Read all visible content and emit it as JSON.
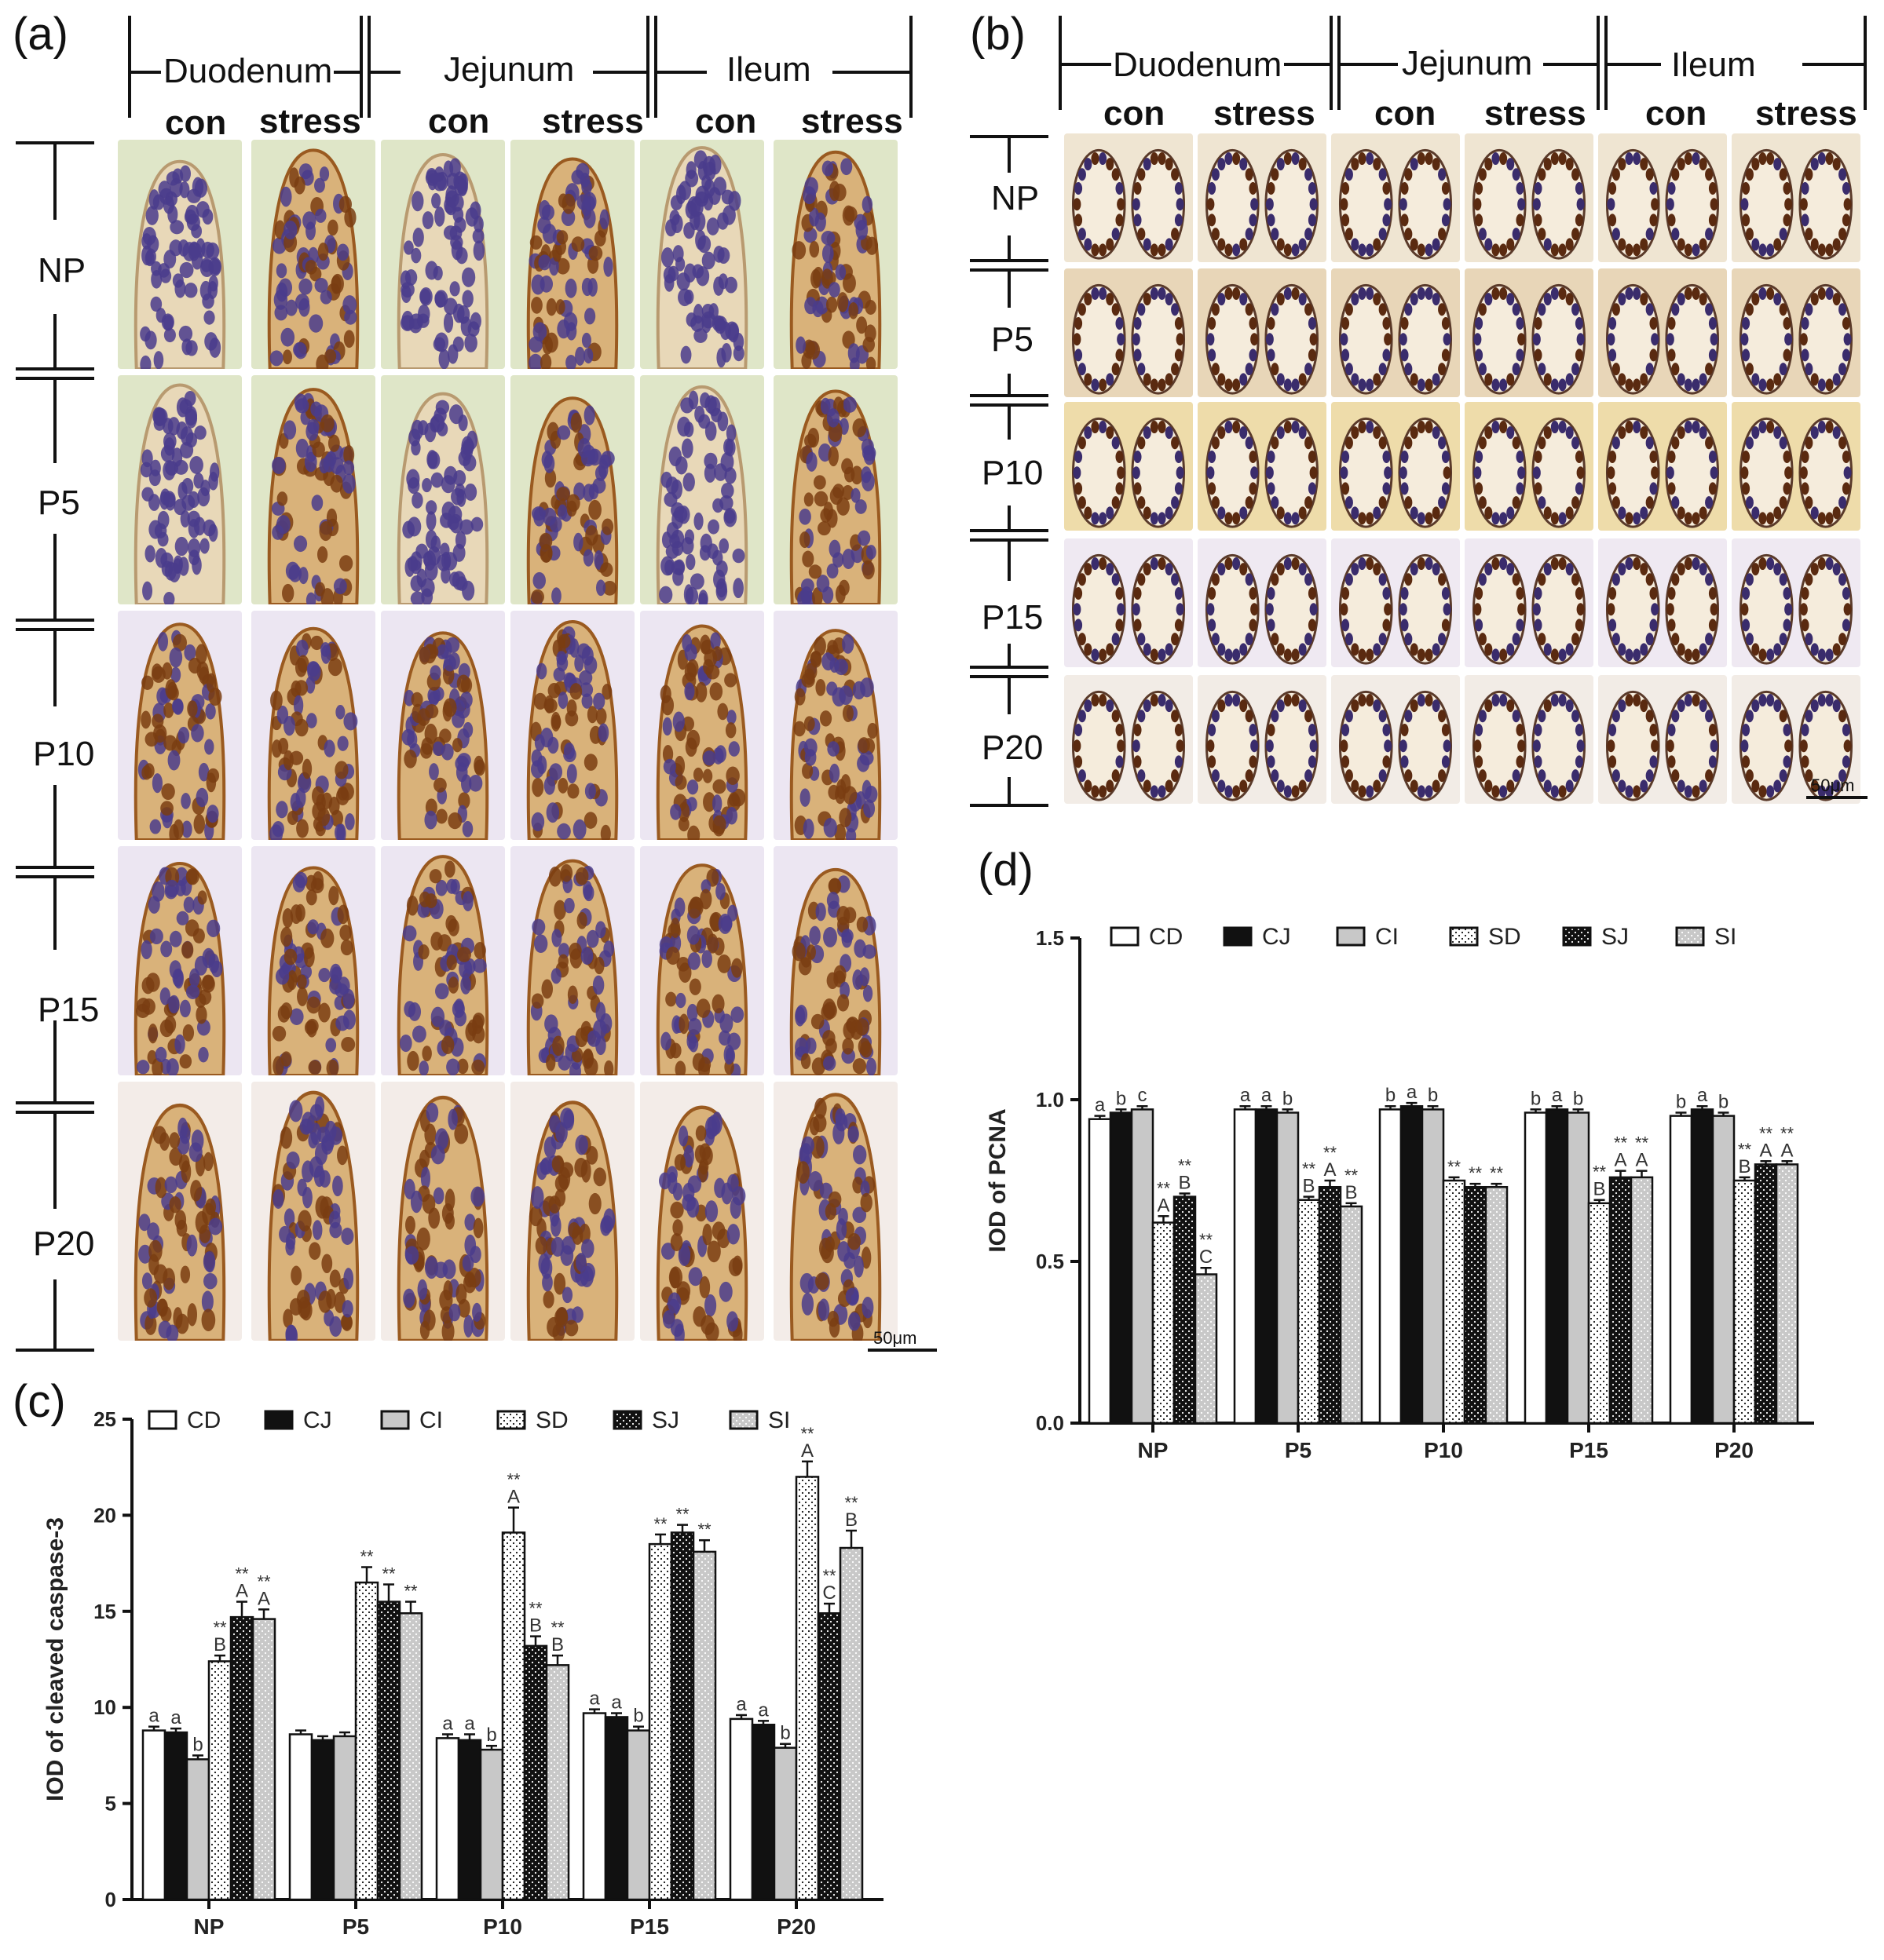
{
  "panel_a": {
    "label": "(a)",
    "segments": [
      "Duodenum",
      "Jejunum",
      "Ileum"
    ],
    "conditions": [
      "con",
      "stress",
      "con",
      "stress",
      "con",
      "stress"
    ],
    "rows": [
      "NP",
      "P5",
      "P10",
      "P15",
      "P20"
    ],
    "scale_label": "50μm"
  },
  "panel_b": {
    "label": "(b)",
    "segments": [
      "Duodenum",
      "Jejunum",
      "Ileum"
    ],
    "conditions": [
      "con",
      "stress",
      "con",
      "stress",
      "con",
      "stress"
    ],
    "rows": [
      "NP",
      "P5",
      "P10",
      "P15",
      "P20"
    ],
    "scale_label": "50μm"
  },
  "panel_c_label": "(c)",
  "panel_d_label": "(d)",
  "colors": {
    "black": "#111111",
    "grey": "#c8c8c8",
    "white": "#ffffff",
    "text": "#222222",
    "tissue_stain_brown": "#8a4a1a",
    "tissue_nuclei_purple": "#5a4a9a",
    "background_green": "#c8d6b0"
  },
  "chart_data": [
    {
      "id": "c",
      "type": "bar",
      "title": "",
      "xlabel": "",
      "ylabel": "IOD of cleaved caspase-3",
      "ylim": [
        0,
        25
      ],
      "yticks": [
        0,
        5,
        10,
        15,
        20,
        25
      ],
      "categories": [
        "NP",
        "P5",
        "P10",
        "P15",
        "P20"
      ],
      "legend_position": "top",
      "series": [
        {
          "name": "CD",
          "fill": "white",
          "values": [
            8.8,
            8.6,
            8.4,
            9.7,
            9.4
          ],
          "errors": [
            0.2,
            0.2,
            0.2,
            0.2,
            0.2
          ],
          "labels": [
            "a",
            "",
            "a",
            "a",
            "a"
          ],
          "stars": [
            "",
            "",
            "",
            "",
            ""
          ]
        },
        {
          "name": "CJ",
          "fill": "black",
          "values": [
            8.7,
            8.3,
            8.3,
            9.5,
            9.1
          ],
          "errors": [
            0.2,
            0.2,
            0.3,
            0.2,
            0.2
          ],
          "labels": [
            "a",
            "",
            "a",
            "a",
            "a"
          ],
          "stars": [
            "",
            "",
            "",
            "",
            ""
          ]
        },
        {
          "name": "CI",
          "fill": "grey",
          "values": [
            7.3,
            8.5,
            7.8,
            8.8,
            7.9
          ],
          "errors": [
            0.2,
            0.2,
            0.2,
            0.2,
            0.2
          ],
          "labels": [
            "b",
            "",
            "b",
            "b",
            "b"
          ],
          "stars": [
            "",
            "",
            "",
            "",
            ""
          ]
        },
        {
          "name": "SD",
          "fill": "dots-white",
          "values": [
            12.4,
            16.5,
            19.1,
            18.5,
            22.0
          ],
          "errors": [
            0.3,
            0.8,
            1.3,
            0.5,
            0.8
          ],
          "labels": [
            "B",
            "",
            "A",
            "",
            "A"
          ],
          "stars": [
            "**",
            "**",
            "**",
            "**",
            "**"
          ]
        },
        {
          "name": "SJ",
          "fill": "dots-black",
          "values": [
            14.7,
            15.5,
            13.2,
            19.1,
            14.9
          ],
          "errors": [
            0.8,
            0.9,
            0.5,
            0.4,
            0.5
          ],
          "labels": [
            "A",
            "",
            "B",
            "",
            "C"
          ],
          "stars": [
            "**",
            "**",
            "**",
            "**",
            "**"
          ]
        },
        {
          "name": "SI",
          "fill": "dots-grey",
          "values": [
            14.6,
            14.9,
            12.2,
            18.1,
            18.3
          ],
          "errors": [
            0.5,
            0.6,
            0.5,
            0.6,
            0.9
          ],
          "labels": [
            "A",
            "",
            "B",
            "",
            "B"
          ],
          "stars": [
            "**",
            "**",
            "**",
            "**",
            "**"
          ]
        }
      ]
    },
    {
      "id": "d",
      "type": "bar",
      "title": "",
      "xlabel": "",
      "ylabel": "IOD of PCNA",
      "ylim": [
        0,
        1.5
      ],
      "yticks": [
        "0.0",
        "0.5",
        "1.0",
        "1.5"
      ],
      "categories": [
        "NP",
        "P5",
        "P10",
        "P15",
        "P20"
      ],
      "legend_position": "top",
      "series": [
        {
          "name": "CD",
          "fill": "white",
          "values": [
            0.94,
            0.97,
            0.97,
            0.96,
            0.95
          ],
          "errors": [
            0.01,
            0.01,
            0.01,
            0.01,
            0.01
          ],
          "labels": [
            "a",
            "a",
            "b",
            "b",
            "b"
          ],
          "stars": [
            "",
            "",
            "",
            "",
            ""
          ]
        },
        {
          "name": "CJ",
          "fill": "black",
          "values": [
            0.96,
            0.97,
            0.98,
            0.97,
            0.97
          ],
          "errors": [
            0.01,
            0.01,
            0.01,
            0.01,
            0.01
          ],
          "labels": [
            "b",
            "a",
            "a",
            "a",
            "a"
          ],
          "stars": [
            "",
            "",
            "",
            "",
            ""
          ]
        },
        {
          "name": "CI",
          "fill": "grey",
          "values": [
            0.97,
            0.96,
            0.97,
            0.96,
            0.95
          ],
          "errors": [
            0.01,
            0.01,
            0.01,
            0.01,
            0.01
          ],
          "labels": [
            "c",
            "b",
            "b",
            "b",
            "b"
          ],
          "stars": [
            "",
            "",
            "",
            "",
            ""
          ]
        },
        {
          "name": "SD",
          "fill": "dots-white",
          "values": [
            0.62,
            0.69,
            0.75,
            0.68,
            0.75
          ],
          "errors": [
            0.02,
            0.01,
            0.01,
            0.01,
            0.01
          ],
          "labels": [
            "A",
            "B",
            "",
            "B",
            "B"
          ],
          "stars": [
            "**",
            "**",
            "**",
            "**",
            "**"
          ]
        },
        {
          "name": "SJ",
          "fill": "dots-black",
          "values": [
            0.7,
            0.73,
            0.73,
            0.76,
            0.8
          ],
          "errors": [
            0.01,
            0.02,
            0.01,
            0.02,
            0.01
          ],
          "labels": [
            "B",
            "A",
            "",
            "A",
            "A"
          ],
          "stars": [
            "**",
            "**",
            "**",
            "**",
            "**"
          ]
        },
        {
          "name": "SI",
          "fill": "dots-grey",
          "values": [
            0.46,
            0.67,
            0.73,
            0.76,
            0.8
          ],
          "errors": [
            0.02,
            0.01,
            0.01,
            0.02,
            0.01
          ],
          "labels": [
            "C",
            "B",
            "",
            "A",
            "A"
          ],
          "stars": [
            "**",
            "**",
            "**",
            "**",
            "**"
          ]
        }
      ]
    }
  ]
}
